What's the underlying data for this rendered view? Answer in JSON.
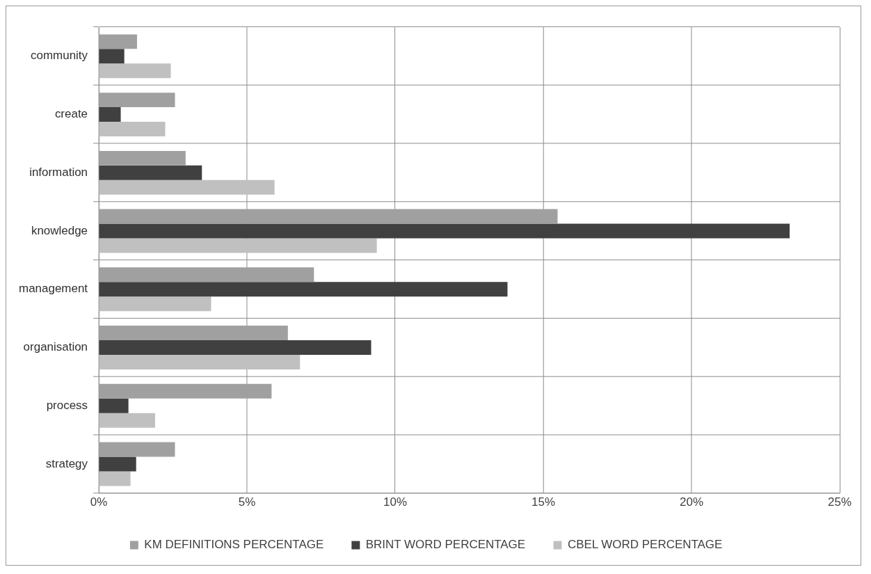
{
  "chart_data": {
    "type": "bar",
    "orientation": "horizontal",
    "categories": [
      "community",
      "create",
      "information",
      "knowledge",
      "management",
      "organisation",
      "process",
      "strategy"
    ],
    "series": [
      {
        "name": "KM DEFINITIONS PERCENTAGE",
        "color": "#a0a0a0",
        "values": [
          1.29,
          2.57,
          2.93,
          15.48,
          7.26,
          6.38,
          5.83,
          2.57
        ]
      },
      {
        "name": "BRINT WORD PERCENTAGE",
        "color": "#404040",
        "values": [
          0.86,
          0.74,
          3.48,
          23.31,
          13.79,
          9.19,
          1.0,
          1.26
        ]
      },
      {
        "name": "CBEL WORD PERCENTAGE",
        "color": "#c0c0c0",
        "values": [
          2.43,
          2.24,
          5.93,
          9.38,
          3.79,
          6.79,
          1.9,
          1.07
        ]
      }
    ],
    "xlim": [
      0,
      25
    ],
    "xticks": [
      {
        "value": 0,
        "label": "0%"
      },
      {
        "value": 5,
        "label": "5%"
      },
      {
        "value": 10,
        "label": "10%"
      },
      {
        "value": 15,
        "label": "15%"
      },
      {
        "value": 20,
        "label": "20%"
      },
      {
        "value": 25,
        "label": "25%"
      }
    ],
    "grid": true,
    "legend": "bottom"
  }
}
